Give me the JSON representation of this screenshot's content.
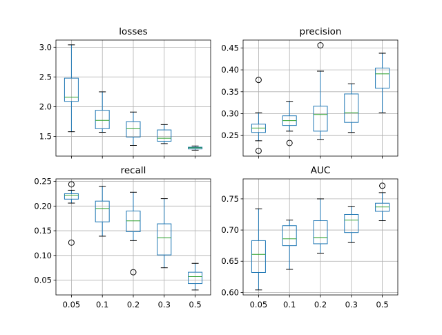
{
  "figure": {
    "colors": {
      "box": "#1f77b4",
      "median": "#2ca02c",
      "whisker": "#000000",
      "grid": "#b0b0b0",
      "axes": "#000000",
      "background": "#ffffff"
    }
  },
  "chart_data": [
    {
      "type": "box",
      "title": "losses",
      "categories": [
        "0.05",
        "0.1",
        "0.2",
        "0.3",
        "0.5"
      ],
      "show_xtick_labels": false,
      "grid": true,
      "ylim": [
        1.17,
        3.12
      ],
      "yticks": [
        1.5,
        2.0,
        2.5,
        3.0
      ],
      "ytick_labels": [
        "1.5",
        "2.0",
        "2.5",
        "3.0"
      ],
      "boxes": [
        {
          "whislo": 1.58,
          "q1": 2.09,
          "med": 2.16,
          "q3": 2.48,
          "whishi": 3.04,
          "fliers": []
        },
        {
          "whislo": 1.57,
          "q1": 1.63,
          "med": 1.77,
          "q3": 1.94,
          "whishi": 2.25,
          "fliers": []
        },
        {
          "whislo": 1.35,
          "q1": 1.49,
          "med": 1.63,
          "q3": 1.75,
          "whishi": 1.91,
          "fliers": []
        },
        {
          "whislo": 1.38,
          "q1": 1.42,
          "med": 1.47,
          "q3": 1.61,
          "whishi": 1.7,
          "fliers": []
        },
        {
          "whislo": 1.27,
          "q1": 1.29,
          "med": 1.31,
          "q3": 1.32,
          "whishi": 1.34,
          "fliers": []
        }
      ]
    },
    {
      "type": "box",
      "title": "precision",
      "categories": [
        "0.05",
        "0.1",
        "0.2",
        "0.3",
        "0.5"
      ],
      "show_xtick_labels": false,
      "grid": true,
      "ylim": [
        0.203,
        0.468
      ],
      "yticks": [
        0.25,
        0.3,
        0.35,
        0.4,
        0.45
      ],
      "ytick_labels": [
        "0.25",
        "0.30",
        "0.35",
        "0.40",
        "0.45"
      ],
      "boxes": [
        {
          "whislo": 0.238,
          "q1": 0.257,
          "med": 0.267,
          "q3": 0.276,
          "whishi": 0.302,
          "fliers": [
            0.377,
            0.215
          ]
        },
        {
          "whislo": 0.26,
          "q1": 0.273,
          "med": 0.284,
          "q3": 0.295,
          "whishi": 0.328,
          "fliers": [
            0.233
          ]
        },
        {
          "whislo": 0.241,
          "q1": 0.26,
          "med": 0.298,
          "q3": 0.317,
          "whishi": 0.397,
          "fliers": [
            0.456
          ]
        },
        {
          "whislo": 0.257,
          "q1": 0.28,
          "med": 0.302,
          "q3": 0.345,
          "whishi": 0.368,
          "fliers": []
        },
        {
          "whislo": 0.302,
          "q1": 0.358,
          "med": 0.391,
          "q3": 0.404,
          "whishi": 0.438,
          "fliers": []
        }
      ]
    },
    {
      "type": "box",
      "title": "recall",
      "categories": [
        "0.05",
        "0.1",
        "0.2",
        "0.3",
        "0.5"
      ],
      "show_xtick_labels": true,
      "grid": true,
      "ylim": [
        0.02,
        0.255
      ],
      "yticks": [
        0.05,
        0.1,
        0.15,
        0.2,
        0.25
      ],
      "ytick_labels": [
        "0.05",
        "0.10",
        "0.15",
        "0.20",
        "0.25"
      ],
      "boxes": [
        {
          "whislo": 0.206,
          "q1": 0.214,
          "med": 0.222,
          "q3": 0.225,
          "whishi": 0.232,
          "fliers": [
            0.244,
            0.126
          ]
        },
        {
          "whislo": 0.139,
          "q1": 0.168,
          "med": 0.195,
          "q3": 0.21,
          "whishi": 0.24,
          "fliers": []
        },
        {
          "whislo": 0.13,
          "q1": 0.148,
          "med": 0.17,
          "q3": 0.19,
          "whishi": 0.228,
          "fliers": [
            0.066
          ]
        },
        {
          "whislo": 0.075,
          "q1": 0.101,
          "med": 0.136,
          "q3": 0.164,
          "whishi": 0.215,
          "fliers": []
        },
        {
          "whislo": 0.03,
          "q1": 0.043,
          "med": 0.057,
          "q3": 0.066,
          "whishi": 0.084,
          "fliers": []
        }
      ]
    },
    {
      "type": "box",
      "title": "AUC",
      "categories": [
        "0.05",
        "0.1",
        "0.2",
        "0.3",
        "0.5"
      ],
      "show_xtick_labels": true,
      "grid": true,
      "ylim": [
        0.596,
        0.782
      ],
      "yticks": [
        0.6,
        0.65,
        0.7,
        0.75
      ],
      "ytick_labels": [
        "0.60",
        "0.65",
        "0.70",
        "0.75"
      ],
      "boxes": [
        {
          "whislo": 0.604,
          "q1": 0.632,
          "med": 0.661,
          "q3": 0.683,
          "whishi": 0.734,
          "fliers": []
        },
        {
          "whislo": 0.637,
          "q1": 0.675,
          "med": 0.686,
          "q3": 0.707,
          "whishi": 0.716,
          "fliers": []
        },
        {
          "whislo": 0.663,
          "q1": 0.678,
          "med": 0.688,
          "q3": 0.715,
          "whishi": 0.75,
          "fliers": []
        },
        {
          "whislo": 0.68,
          "q1": 0.696,
          "med": 0.716,
          "q3": 0.725,
          "whishi": 0.738,
          "fliers": []
        },
        {
          "whislo": 0.715,
          "q1": 0.73,
          "med": 0.737,
          "q3": 0.743,
          "whishi": 0.76,
          "fliers": [
            0.771
          ]
        }
      ]
    }
  ]
}
